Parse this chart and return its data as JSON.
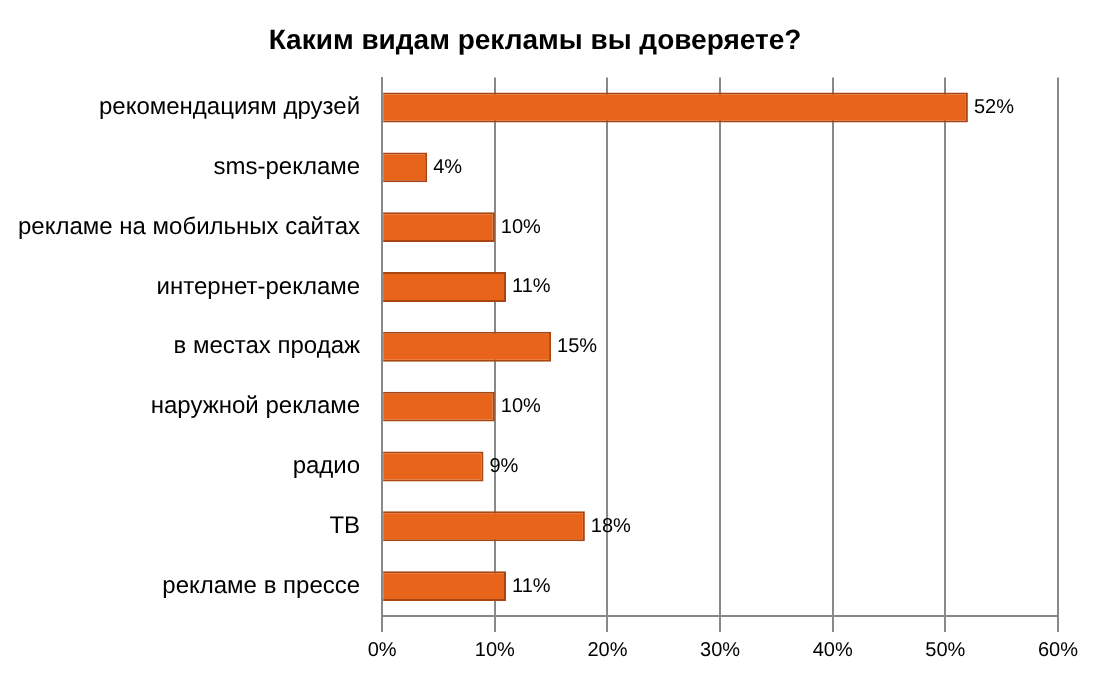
{
  "chart_data": {
    "type": "bar",
    "orientation": "horizontal",
    "title": "Каким видам рекламы вы доверяете?",
    "categories": [
      "рекомендациям друзей",
      "sms-рекламе",
      "рекламе на мобильных сайтах",
      "интернет-рекламе",
      "в местах продаж",
      "наружной рекламе",
      "радио",
      "ТВ",
      "рекламе в прессе"
    ],
    "values": [
      52,
      4,
      10,
      11,
      15,
      10,
      9,
      18,
      11
    ],
    "value_labels": [
      "52%",
      "4%",
      "10%",
      "11%",
      "15%",
      "10%",
      "9%",
      "18%",
      "11%"
    ],
    "color": "#e8641b",
    "xlim": [
      0,
      60
    ],
    "xticks": [
      {
        "value": 0,
        "label": "0%"
      },
      {
        "value": 10,
        "label": "10%"
      },
      {
        "value": 20,
        "label": "20%"
      },
      {
        "value": 30,
        "label": "30%"
      },
      {
        "value": 40,
        "label": "40%"
      },
      {
        "value": 50,
        "label": "50%"
      },
      {
        "value": 60,
        "label": "60%"
      }
    ],
    "grid": "x",
    "legend": false
  }
}
